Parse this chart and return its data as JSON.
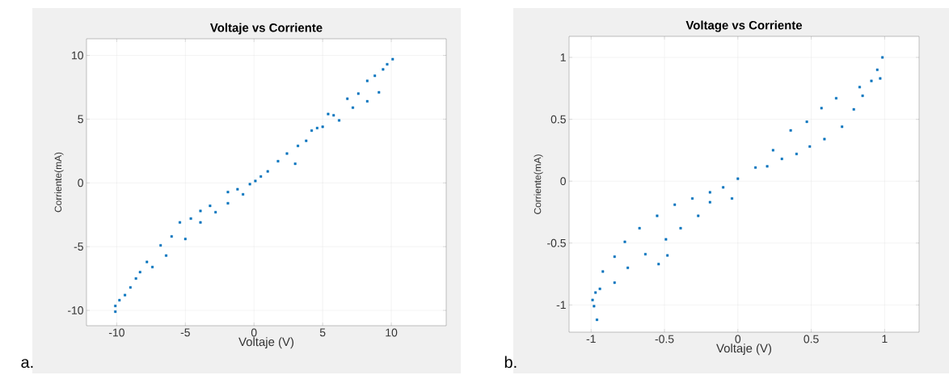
{
  "chart_data": [
    {
      "type": "scatter",
      "title": "Voltaje vs Corriente",
      "xlabel": "Voltaje (V)",
      "ylabel": "Corriente(mA)",
      "annotations": [
        "a."
      ],
      "xlim": [
        -12.2,
        14
      ],
      "ylim": [
        -11.2,
        11.3
      ],
      "xticks": [
        -10,
        -5,
        0,
        5,
        10
      ],
      "yticks": [
        -10,
        -5,
        0,
        5,
        10
      ],
      "grid": true,
      "marker": "square",
      "series": [
        {
          "color": "#0072bd",
          "x": [
            -10.1,
            -10.1,
            -9.8,
            -9.4,
            -9.0,
            -8.6,
            -8.3,
            -7.8,
            -7.4,
            -6.8,
            -6.4,
            -6.0,
            -5.4,
            -5.0,
            -4.6,
            -3.9,
            -3.9,
            -3.2,
            -2.8,
            -1.9,
            -1.9,
            -1.2,
            -0.8,
            -0.3,
            0.1,
            0.5,
            1.0,
            1.75,
            2.4,
            3.0,
            3.2,
            3.8,
            4.2,
            4.6,
            5.0,
            5.4,
            5.8,
            6.2,
            6.8,
            7.2,
            7.6,
            8.25,
            8.25,
            8.8,
            9.1,
            9.4,
            9.7,
            10.1
          ],
          "values": [
            -9.65,
            -10.1,
            -9.2,
            -8.8,
            -8.2,
            -7.5,
            -7.0,
            -6.2,
            -6.6,
            -4.9,
            -5.7,
            -4.2,
            -3.1,
            -4.4,
            -2.8,
            -2.2,
            -3.1,
            -1.8,
            -2.3,
            -0.72,
            -1.6,
            -0.5,
            -0.9,
            -0.1,
            0.15,
            0.5,
            0.9,
            1.7,
            2.3,
            1.5,
            2.9,
            3.3,
            4.1,
            4.3,
            4.4,
            5.4,
            5.3,
            4.9,
            6.6,
            5.9,
            7.0,
            8.0,
            6.4,
            8.4,
            7.1,
            8.9,
            9.3,
            9.7
          ]
        }
      ]
    },
    {
      "type": "scatter",
      "title": "Voltage vs Corriente",
      "xlabel": "Voltaje (V)",
      "ylabel": "Corriente(mA)",
      "annotations": [
        "b."
      ],
      "xlim": [
        -1.15,
        1.235
      ],
      "ylim": [
        -1.22,
        1.17
      ],
      "xticks": [
        -1,
        -0.5,
        0,
        0.5,
        1
      ],
      "yticks": [
        -1,
        -0.5,
        0,
        0.5,
        1
      ],
      "grid": true,
      "marker": "square",
      "series": [
        {
          "color": "#0072bd",
          "x": [
            -0.99,
            -0.98,
            -0.96,
            -0.97,
            -0.94,
            -0.92,
            -0.84,
            -0.84,
            -0.77,
            -0.75,
            -0.67,
            -0.63,
            -0.55,
            -0.54,
            -0.49,
            -0.48,
            -0.43,
            -0.39,
            -0.31,
            -0.27,
            -0.19,
            -0.19,
            -0.1,
            -0.04,
            0.0,
            0.12,
            0.2,
            0.24,
            0.3,
            0.36,
            0.4,
            0.47,
            0.49,
            0.57,
            0.59,
            0.67,
            0.71,
            0.79,
            0.83,
            0.85,
            0.91,
            0.95,
            0.97,
            0.985
          ],
          "values": [
            -0.96,
            -1.01,
            -1.12,
            -0.9,
            -0.87,
            -0.73,
            -0.61,
            -0.82,
            -0.49,
            -0.7,
            -0.38,
            -0.59,
            -0.28,
            -0.67,
            -0.47,
            -0.6,
            -0.19,
            -0.38,
            -0.14,
            -0.28,
            -0.09,
            -0.17,
            -0.05,
            -0.14,
            0.02,
            0.11,
            0.12,
            0.25,
            0.18,
            0.41,
            0.22,
            0.48,
            0.28,
            0.59,
            0.34,
            0.67,
            0.44,
            0.58,
            0.76,
            0.69,
            0.81,
            0.9,
            0.83,
            1.0
          ]
        }
      ]
    }
  ]
}
